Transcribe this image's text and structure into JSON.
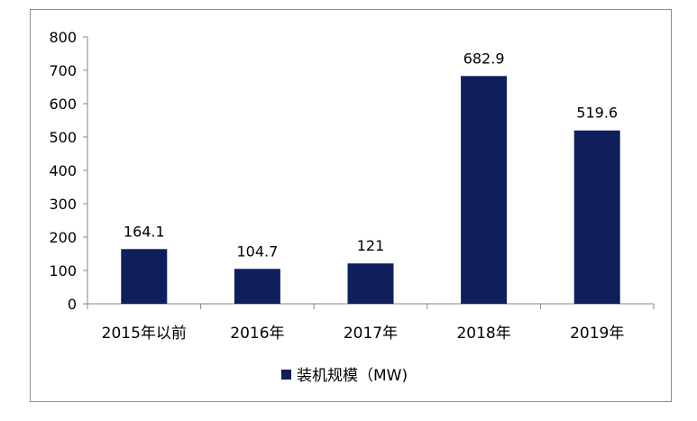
{
  "chart_data": {
    "type": "bar",
    "categories": [
      "2015年以前",
      "2016年",
      "2017年",
      "2018年",
      "2019年"
    ],
    "series": [
      {
        "name": "装机规模（MW)",
        "values": [
          164.1,
          104.7,
          121,
          682.9,
          519.6
        ],
        "color": "#0f1f5c"
      }
    ],
    "data_labels": [
      "164.1",
      "104.7",
      "121",
      "682.9",
      "519.6"
    ],
    "yticks": [
      0,
      100,
      200,
      300,
      400,
      500,
      600,
      700,
      800
    ],
    "ylim": [
      0,
      800
    ],
    "grid": false,
    "legend": "bottom",
    "legend_label": "装机规模（MW)"
  }
}
